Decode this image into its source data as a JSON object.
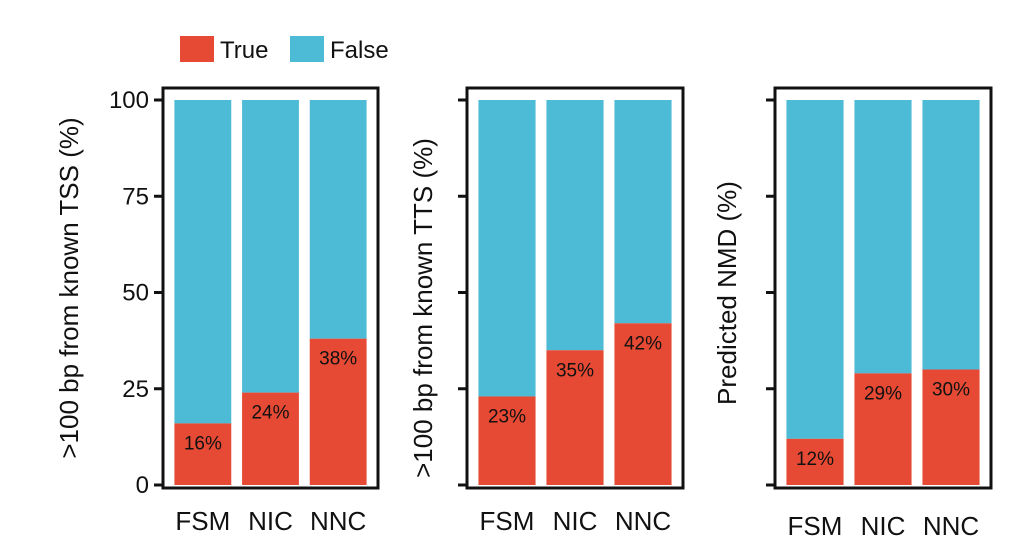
{
  "legend": {
    "entries": [
      {
        "name": "True",
        "color": "#e64a35"
      },
      {
        "name": "False",
        "color": "#4dbbd6"
      }
    ],
    "placement": "top-left"
  },
  "chart_data": [
    {
      "type": "bar",
      "stacked": true,
      "categories": [
        "FSM",
        "NIC",
        "NNC"
      ],
      "series": [
        {
          "name": "True",
          "values": [
            16,
            24,
            38
          ]
        },
        {
          "name": "False",
          "values": [
            84,
            76,
            62
          ]
        }
      ],
      "data_labels": [
        "16%",
        "24%",
        "38%"
      ],
      "ylabel": ">100 bp from known TSS (%)",
      "ylim": [
        0,
        100
      ],
      "yticks": [
        "0",
        "25",
        "50",
        "75",
        "100"
      ],
      "grid": false
    },
    {
      "type": "bar",
      "stacked": true,
      "categories": [
        "FSM",
        "NIC",
        "NNC"
      ],
      "series": [
        {
          "name": "True",
          "values": [
            23,
            35,
            42
          ]
        },
        {
          "name": "False",
          "values": [
            77,
            65,
            58
          ]
        }
      ],
      "data_labels": [
        "23%",
        "35%",
        "42%"
      ],
      "ylabel": ">100 bp from known TTS (%)",
      "ylim": [
        0,
        100
      ],
      "yticks": [],
      "grid": false
    },
    {
      "type": "bar",
      "stacked": true,
      "categories": [
        "FSM",
        "NIC",
        "NNC"
      ],
      "series": [
        {
          "name": "True",
          "values": [
            12,
            29,
            30
          ]
        },
        {
          "name": "False",
          "values": [
            88,
            71,
            70
          ]
        }
      ],
      "data_labels": [
        "12%",
        "29%",
        "30%"
      ],
      "ylabel": "Predicted NMD (%)",
      "ylim": [
        0,
        100
      ],
      "yticks": [],
      "grid": false
    }
  ]
}
